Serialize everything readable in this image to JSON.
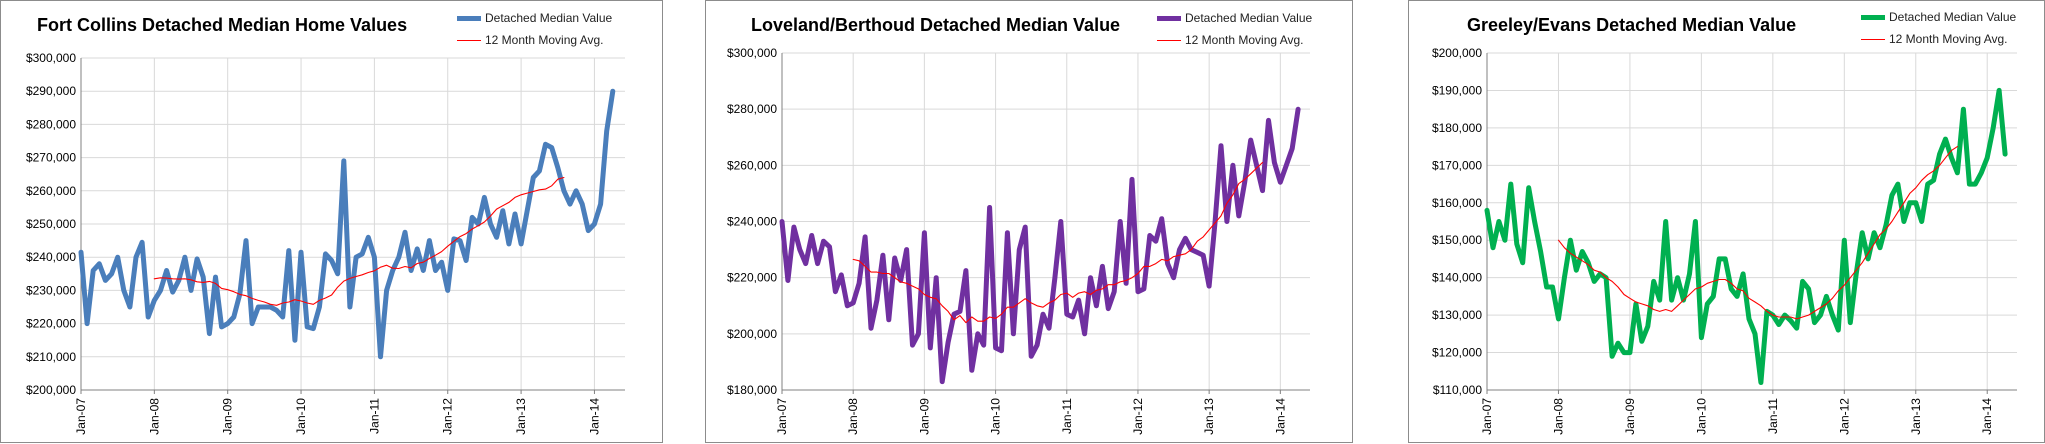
{
  "chart_data": [
    {
      "type": "line",
      "title": "Fort Collins Detached Median Home Values",
      "ylim": [
        200000,
        300000
      ],
      "y_ticks": [
        "$200,000",
        "$210,000",
        "$220,000",
        "$230,000",
        "$240,000",
        "$250,000",
        "$260,000",
        "$270,000",
        "$280,000",
        "$290,000",
        "$300,000"
      ],
      "x_range": [
        "2007-01",
        "2014-06"
      ],
      "x_ticks": [
        "Jan-07",
        "Jan-08",
        "Jan-09",
        "Jan-10",
        "Jan-11",
        "Jan-12",
        "Jan-13",
        "Jan-14"
      ],
      "grid": true,
      "legend_position": "top-right",
      "series": [
        {
          "name": "Detached Median Value",
          "color": "#4a7ebb",
          "start": "2007-01",
          "values": [
            241500,
            220000,
            236000,
            238000,
            233000,
            235000,
            240000,
            230000,
            225000,
            240000,
            244500,
            222000,
            227000,
            230000,
            236000,
            229500,
            233000,
            240000,
            230000,
            239500,
            234000,
            217000,
            234000,
            219000,
            220000,
            222000,
            229000,
            245000,
            220000,
            225000,
            225000,
            225000,
            224000,
            222000,
            242000,
            215000,
            241500,
            219000,
            218500,
            225000,
            241000,
            239000,
            235000,
            269000,
            225000,
            240000,
            241000,
            246000,
            240000,
            210000,
            230000,
            236000,
            240000,
            247500,
            236000,
            242500,
            236000,
            245000,
            236000,
            238500,
            230000,
            245500,
            245000,
            239000,
            252000,
            250000,
            258000,
            250000,
            246000,
            254000,
            244000,
            253000,
            244000,
            254000,
            264000,
            266000,
            274000,
            273000,
            267000,
            260000,
            256000,
            260000,
            256000,
            248000,
            250000,
            256000,
            278000,
            290000
          ]
        },
        {
          "name": "12 Month Moving Avg.",
          "color": "#ff0000",
          "start": "2008-01",
          "values": [
            233500,
            233800,
            233700,
            233500,
            233400,
            233500,
            233200,
            232600,
            232400,
            232700,
            232100,
            230600,
            230200,
            229600,
            228800,
            228400,
            227600,
            227000,
            226500,
            225800,
            225500,
            226200,
            226500,
            227200,
            226800,
            226200,
            225800,
            227000,
            227700,
            228600,
            231000,
            232800,
            233600,
            234200,
            234700,
            235400,
            235900,
            237000,
            237600,
            236700,
            236600,
            237200,
            236800,
            238100,
            238500,
            239600,
            240600,
            241700,
            243300,
            244800,
            246200,
            247100,
            248500,
            249500,
            250600,
            252400,
            254500,
            255500,
            256500,
            258000,
            258800,
            259300,
            259800,
            260300,
            260500,
            261500,
            263500,
            264000
          ]
        }
      ]
    },
    {
      "type": "line",
      "title": "Loveland/Berthoud Detached Median Value",
      "ylim": [
        180000,
        300000
      ],
      "y_ticks": [
        "$180,000",
        "$200,000",
        "$220,000",
        "$240,000",
        "$260,000",
        "$280,000",
        "$300,000"
      ],
      "x_range": [
        "2007-01",
        "2014-06"
      ],
      "x_ticks": [
        "Jan-07",
        "Jan-08",
        "Jan-09",
        "Jan-10",
        "Jan-11",
        "Jan-12",
        "Jan-13",
        "Jan-14"
      ],
      "grid": true,
      "legend_position": "top-right",
      "series": [
        {
          "name": "Detached Median Value",
          "color": "#7030a0",
          "start": "2007-01",
          "values": [
            240000,
            219000,
            238000,
            230000,
            225000,
            235000,
            225000,
            233000,
            231000,
            215000,
            221000,
            210000,
            211000,
            218000,
            234500,
            202000,
            212000,
            228000,
            205000,
            227000,
            219000,
            230000,
            196000,
            200000,
            236000,
            195000,
            220000,
            183000,
            197000,
            207000,
            208000,
            222500,
            187000,
            200000,
            196000,
            245000,
            195000,
            194000,
            236000,
            200000,
            230000,
            238000,
            192000,
            196000,
            207000,
            202000,
            220000,
            240000,
            207000,
            206000,
            212000,
            200000,
            220000,
            210000,
            224000,
            209000,
            215000,
            240000,
            218000,
            255000,
            215000,
            216000,
            235000,
            233000,
            241000,
            225000,
            220000,
            230000,
            234000,
            230000,
            229000,
            228000,
            217000,
            240000,
            267000,
            240000,
            260000,
            242000,
            254000,
            269000,
            260000,
            251000,
            276000,
            261000,
            254000,
            260000,
            266000,
            280000
          ]
        },
        {
          "name": "12 Month Moving Avg.",
          "color": "#ff0000",
          "start": "2008-01",
          "values": [
            226500,
            226000,
            224000,
            222000,
            222000,
            221500,
            221500,
            220000,
            218500,
            218000,
            217000,
            216000,
            214000,
            213000,
            212500,
            210000,
            208000,
            205000,
            206500,
            204000,
            206000,
            204500,
            204500,
            206000,
            205500,
            207000,
            209500,
            209500,
            211000,
            212500,
            211000,
            210000,
            209500,
            211000,
            212000,
            214000,
            214500,
            213000,
            214500,
            215000,
            214000,
            215500,
            216000,
            217500,
            217500,
            218500,
            219000,
            220000,
            221500,
            224000,
            224000,
            225000,
            226500,
            226000,
            227500,
            228000,
            228500,
            230000,
            233000,
            234500,
            237000,
            239500,
            242000,
            246500,
            249500,
            253500,
            255000,
            257000,
            259000,
            261000
          ]
        }
      ]
    },
    {
      "type": "line",
      "title": "Greeley/Evans Detached Median Value",
      "ylim": [
        110000,
        200000
      ],
      "y_ticks": [
        "$110,000",
        "$120,000",
        "$130,000",
        "$140,000",
        "$150,000",
        "$160,000",
        "$170,000",
        "$180,000",
        "$190,000",
        "$200,000"
      ],
      "x_range": [
        "2007-01",
        "2014-06"
      ],
      "x_ticks": [
        "Jan-07",
        "Jan-08",
        "Jan-09",
        "Jan-10",
        "Jan-11",
        "Jan-12",
        "Jan-13",
        "Jan-14"
      ],
      "grid": true,
      "legend_position": "top-right",
      "series": [
        {
          "name": "Detached Median Value",
          "color": "#00b050",
          "start": "2007-01",
          "values": [
            158000,
            148000,
            155000,
            150000,
            165000,
            149000,
            144000,
            164000,
            155000,
            147000,
            137500,
            137500,
            129000,
            140000,
            150000,
            142000,
            147000,
            144000,
            139000,
            141000,
            140000,
            119000,
            122500,
            120000,
            120000,
            133000,
            123000,
            127000,
            139000,
            134000,
            155000,
            134000,
            140000,
            134000,
            141000,
            155000,
            124000,
            133000,
            135000,
            145000,
            145000,
            137000,
            135000,
            141000,
            129000,
            125000,
            112000,
            131000,
            130000,
            127500,
            130000,
            128500,
            126500,
            139000,
            137000,
            128000,
            130000,
            135000,
            130000,
            126000,
            150000,
            128000,
            141000,
            152000,
            145000,
            152000,
            148000,
            154000,
            162000,
            165000,
            155000,
            160000,
            160000,
            155000,
            165000,
            166000,
            173000,
            177000,
            172000,
            168000,
            185000,
            165000,
            165000,
            168000,
            172000,
            180000,
            190000,
            173000
          ]
        },
        {
          "name": "12 Month Moving Avg.",
          "color": "#ff0000",
          "start": "2008-01",
          "values": [
            150000,
            148000,
            146500,
            145500,
            144500,
            143500,
            142000,
            141500,
            140000,
            139000,
            137500,
            135500,
            134500,
            133500,
            133000,
            132500,
            131500,
            131000,
            131500,
            131000,
            132500,
            134000,
            135500,
            137000,
            137500,
            138500,
            139000,
            139500,
            139500,
            138500,
            137000,
            136500,
            134500,
            133500,
            132500,
            131000,
            130000,
            129500,
            129500,
            129500,
            129000,
            129500,
            130000,
            131000,
            132000,
            133000,
            134500,
            136500,
            138000,
            140000,
            142000,
            144000,
            146500,
            149000,
            151500,
            153000,
            155000,
            157500,
            160000,
            162500,
            164000,
            166000,
            167500,
            168500,
            170000,
            172000,
            174000,
            175000
          ]
        }
      ]
    }
  ]
}
